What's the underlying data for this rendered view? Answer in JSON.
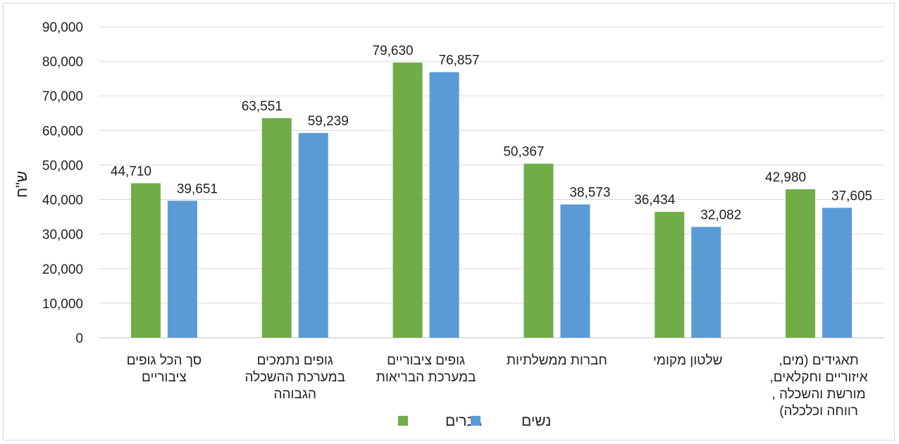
{
  "chart_data": {
    "type": "bar",
    "ylabel": "ש\"ח",
    "ylim": [
      0,
      90000
    ],
    "yticks": [
      0,
      10000,
      20000,
      30000,
      40000,
      50000,
      60000,
      70000,
      80000,
      90000
    ],
    "ytick_labels": [
      "0",
      "10,000",
      "20,000",
      "30,000",
      "40,000",
      "50,000",
      "60,000",
      "70,000",
      "80,000",
      "90,000"
    ],
    "grid": true,
    "legend_position": "bottom",
    "categories": [
      [
        "סך הכל גופים",
        "ציבוריים"
      ],
      [
        "גופים נתמכים",
        "במערכת ההשכלה",
        "הגבוהה"
      ],
      [
        "גופים ציבוריים",
        "במערכת הבריאות"
      ],
      [
        "חברות ממשלתיות"
      ],
      [
        "שלטון מקומי"
      ],
      [
        "תאגידים (מים,",
        "איזוריים וחקלאים,",
        "מורשת והשכלה ,",
        "רווחה וכלכלה)"
      ]
    ],
    "series": [
      {
        "name": "גברים",
        "color": "#70ad47",
        "values": [
          44710,
          63551,
          79630,
          50367,
          36434,
          42980
        ],
        "labels": [
          "44,710",
          "63,551",
          "79,630",
          "50,367",
          "36,434",
          "42,980"
        ]
      },
      {
        "name": "נשים",
        "color": "#5b9bd5",
        "values": [
          39651,
          59239,
          76857,
          38573,
          32082,
          37605
        ],
        "labels": [
          "39,651",
          "59,239",
          "76,857",
          "38,573",
          "32,082",
          "37,605"
        ]
      }
    ]
  }
}
